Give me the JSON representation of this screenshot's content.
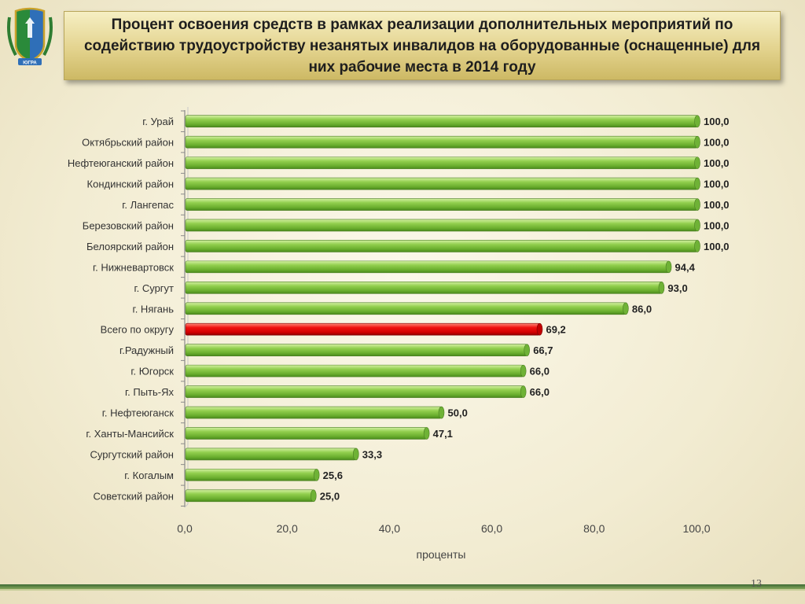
{
  "title": "Процент освоения средств в рамках реализации дополнительных мероприятий по содействию трудоустройству  незанятых инвалидов  на оборудованные (оснащенные) для них рабочие места в 2014 году",
  "page_number": "13",
  "logo": {
    "icon": "coat-of-arms-emblem",
    "text": "ЮГРА"
  },
  "colors": {
    "bar_default": "#7ac143",
    "bar_highlight": "#e3000f",
    "title_bg": "#e3d38e",
    "band": "#3d6a34"
  },
  "chart_data": {
    "type": "bar",
    "orientation": "horizontal",
    "title": "",
    "xlabel": "проценты",
    "ylabel": "",
    "xlim": [
      0,
      100
    ],
    "x_ticks": [
      "0,0",
      "20,0",
      "40,0",
      "60,0",
      "80,0",
      "100,0"
    ],
    "grid": false,
    "legend": "none",
    "categories": [
      "г. Урай",
      "Октябрьский район",
      "Нефтеюганский район",
      "Кондинский район",
      "г. Лангепас",
      "Березовский район",
      "Белоярский  район",
      "г. Нижневартовск",
      "г. Сургут",
      "г. Нягань",
      "Всего по округу",
      "г.Радужный",
      "г. Югорск",
      "г. Пыть-Ях",
      "г. Нефтеюганск",
      "г. Ханты-Мансийск",
      "Сургутский район",
      "г. Когалым",
      "Советский район"
    ],
    "values": [
      100.0,
      100.0,
      100.0,
      100.0,
      100.0,
      100.0,
      100.0,
      94.4,
      93.0,
      86.0,
      69.2,
      66.7,
      66.0,
      66.0,
      50.0,
      47.1,
      33.3,
      25.6,
      25.0
    ],
    "value_labels": [
      "100,0",
      "100,0",
      "100,0",
      "100,0",
      "100,0",
      "100,0",
      "100,0",
      "94,4",
      "93,0",
      "86,0",
      "69,2",
      "66,7",
      "66,0",
      "66,0",
      "50,0",
      "47,1",
      "33,3",
      "25,6",
      "25,0"
    ],
    "highlight_category": "Всего по округу"
  }
}
